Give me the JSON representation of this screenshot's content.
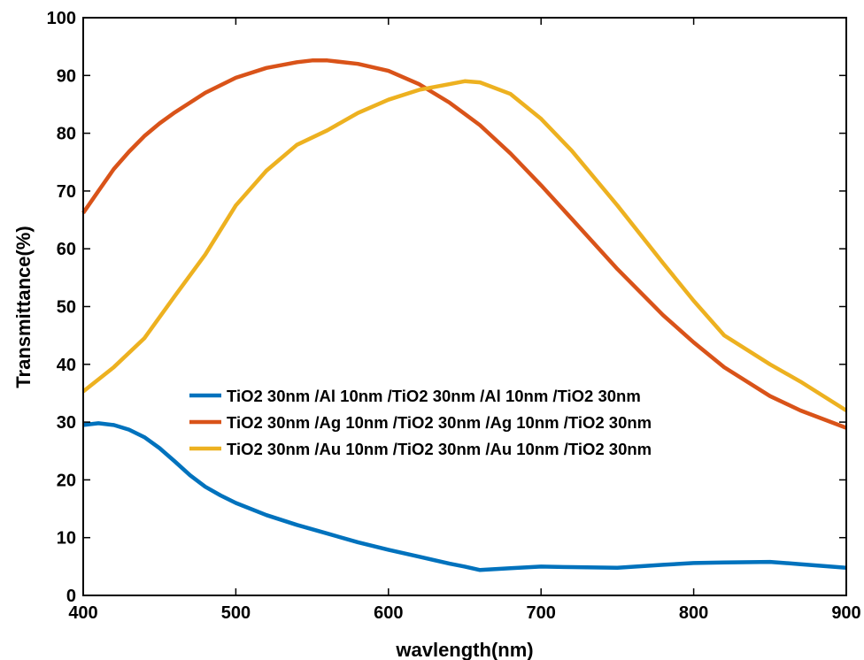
{
  "chart_data": {
    "type": "line",
    "title": "",
    "xlabel": "wavlength(nm)",
    "ylabel": "Transmittance(%)",
    "xlim": [
      400,
      900
    ],
    "ylim": [
      0,
      100
    ],
    "x_ticks": [
      400,
      500,
      600,
      700,
      800,
      900
    ],
    "y_ticks": [
      0,
      10,
      20,
      30,
      40,
      50,
      60,
      70,
      80,
      90,
      100
    ],
    "grid": false,
    "legend_position": "center-left",
    "series": [
      {
        "name": "TiO2 30nm /Al 10nm /TiO2 30nm /Al 10nm /TiO2 30nm",
        "color": "#0072BD",
        "x": [
          400,
          410,
          420,
          430,
          440,
          450,
          460,
          470,
          480,
          490,
          500,
          520,
          540,
          560,
          580,
          600,
          620,
          640,
          650,
          660,
          680,
          700,
          720,
          750,
          780,
          800,
          820,
          850,
          870,
          900
        ],
        "y": [
          29.5,
          29.8,
          29.5,
          28.7,
          27.4,
          25.5,
          23.2,
          20.8,
          18.8,
          17.3,
          16.0,
          13.9,
          12.2,
          10.7,
          9.2,
          7.9,
          6.7,
          5.5,
          5.0,
          4.4,
          4.7,
          5.0,
          4.9,
          4.8,
          5.3,
          5.6,
          5.7,
          5.8,
          5.4,
          4.8
        ]
      },
      {
        "name": "TiO2 30nm /Ag 10nm /TiO2 30nm /Ag 10nm /TiO2 30nm",
        "color": "#D95319",
        "x": [
          400,
          410,
          420,
          430,
          440,
          450,
          460,
          480,
          500,
          520,
          540,
          550,
          560,
          580,
          600,
          620,
          640,
          660,
          680,
          700,
          720,
          750,
          780,
          800,
          820,
          850,
          870,
          900
        ],
        "y": [
          66.2,
          70.0,
          73.8,
          76.8,
          79.5,
          81.7,
          83.6,
          87.0,
          89.6,
          91.3,
          92.3,
          92.6,
          92.6,
          92.0,
          90.8,
          88.5,
          85.3,
          81.4,
          76.5,
          71.0,
          65.2,
          56.5,
          48.5,
          43.8,
          39.5,
          34.5,
          32.0,
          29.0
        ]
      },
      {
        "name": "TiO2 30nm /Au 10nm /TiO2 30nm /Au 10nm /TiO2 30nm",
        "color": "#EDB120",
        "x": [
          400,
          420,
          440,
          460,
          480,
          500,
          520,
          540,
          560,
          580,
          600,
          620,
          640,
          650,
          660,
          680,
          700,
          720,
          750,
          780,
          800,
          820,
          850,
          870,
          900
        ],
        "y": [
          35.3,
          39.5,
          44.5,
          51.8,
          59.0,
          67.5,
          73.5,
          78.0,
          80.5,
          83.5,
          85.8,
          87.5,
          88.5,
          89.0,
          88.8,
          86.8,
          82.5,
          77.0,
          67.5,
          57.5,
          51.0,
          45.0,
          40.0,
          37.0,
          32.0
        ]
      }
    ]
  }
}
